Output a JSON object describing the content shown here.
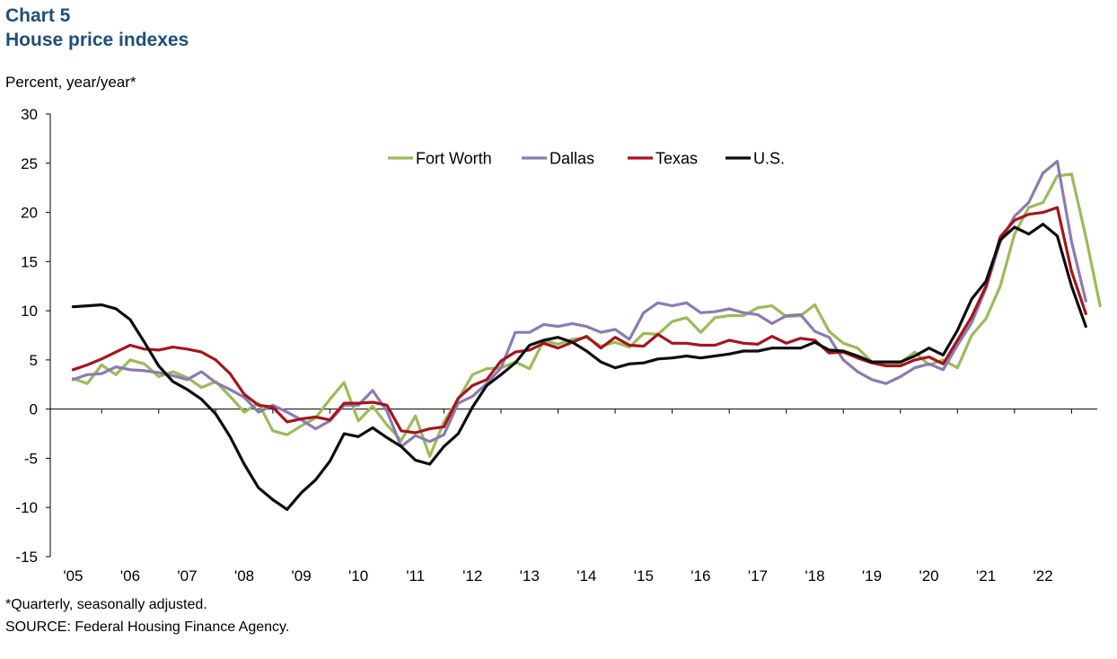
{
  "header": {
    "chart_number": "Chart 5",
    "title": "House price indexes"
  },
  "footnote": "*Quarterly, seasonally adjusted.",
  "source": "SOURCE: Federal Housing Finance Agency.",
  "colors": {
    "fort_worth": "#9bbb59",
    "dallas": "#8c7ab4",
    "texas": "#a3161c",
    "us": "#0d0d0d",
    "title": "#1f4e79"
  },
  "chart_data": {
    "type": "line",
    "ylabel": "Percent, year/year*",
    "xlabel": "",
    "ylim": [
      -15,
      30
    ],
    "yticks": [
      30,
      25,
      20,
      15,
      10,
      5,
      0,
      -5,
      -10,
      -15
    ],
    "x_start": 2005.0,
    "x_step": 0.25,
    "xlim": [
      2004.6,
      2022.95
    ],
    "xtick_labels": [
      "'05",
      "'06",
      "'07",
      "'08",
      "'09",
      "'10",
      "'11",
      "'12",
      "'13",
      "'14",
      "'15",
      "'16",
      "'17",
      "'18",
      "'19",
      "'20",
      "'21",
      "'22"
    ],
    "legend": {
      "placement": "top-center"
    },
    "series": [
      {
        "name": "Fort Worth",
        "color": "#9bbb59",
        "values": [
          3.1,
          2.6,
          4.5,
          3.5,
          5.0,
          4.6,
          3.3,
          3.8,
          3.2,
          2.2,
          2.8,
          1.3,
          -0.3,
          0.6,
          -2.2,
          -2.6,
          -1.7,
          -0.9,
          1.0,
          2.7,
          -1.2,
          0.3,
          -1.6,
          -3.2,
          -0.7,
          -4.8,
          -1.3,
          1.0,
          3.5,
          4.1,
          4.2,
          4.8,
          4.1,
          7.0,
          6.6,
          7.1,
          7.3,
          6.4,
          6.8,
          6.3,
          7.7,
          7.6,
          8.9,
          9.3,
          7.8,
          9.3,
          9.5,
          9.5,
          10.3,
          10.5,
          9.4,
          9.5,
          10.6,
          7.9,
          6.7,
          6.2,
          4.8,
          4.6,
          4.7,
          5.8,
          4.5,
          5.0,
          4.2,
          7.5,
          9.2,
          12.5,
          17.8,
          20.5,
          21.0,
          23.7,
          23.9,
          17.5,
          10.5
        ]
      },
      {
        "name": "Dallas",
        "color": "#8c7ab4",
        "values": [
          3.0,
          3.5,
          3.6,
          4.3,
          4.0,
          3.9,
          3.7,
          3.4,
          3.0,
          3.8,
          2.7,
          2.0,
          1.2,
          -0.3,
          0.4,
          -0.3,
          -1.1,
          -2.0,
          -1.2,
          0.4,
          0.4,
          1.9,
          -0.2,
          -3.8,
          -2.7,
          -3.3,
          -2.6,
          0.6,
          1.3,
          2.6,
          4.2,
          7.8,
          7.8,
          8.6,
          8.4,
          8.7,
          8.4,
          7.8,
          8.1,
          7.1,
          9.8,
          10.8,
          10.5,
          10.8,
          9.8,
          9.9,
          10.2,
          9.8,
          9.6,
          8.7,
          9.5,
          9.6,
          7.9,
          7.3,
          5.0,
          3.8,
          3.0,
          2.6,
          3.3,
          4.2,
          4.6,
          4.0,
          6.5,
          8.8,
          12.3,
          17.0,
          19.6,
          21.0,
          24.0,
          25.2,
          17.0,
          11.0
        ]
      },
      {
        "name": "Texas",
        "color": "#a3161c",
        "values": [
          4.0,
          4.5,
          5.1,
          5.8,
          6.5,
          6.1,
          6.0,
          6.3,
          6.1,
          5.8,
          5.0,
          3.6,
          1.5,
          0.4,
          0.2,
          -1.3,
          -1.0,
          -0.8,
          -1.1,
          0.6,
          0.6,
          0.7,
          0.4,
          -2.2,
          -2.4,
          -2.0,
          -1.8,
          1.1,
          2.4,
          3.0,
          4.9,
          5.8,
          6.0,
          6.7,
          6.2,
          6.8,
          7.4,
          6.2,
          7.3,
          6.5,
          6.4,
          7.6,
          6.7,
          6.7,
          6.5,
          6.5,
          7.0,
          6.7,
          6.6,
          7.4,
          6.7,
          7.2,
          7.0,
          5.7,
          5.8,
          5.2,
          4.7,
          4.4,
          4.4,
          5.0,
          5.3,
          4.6,
          7.0,
          9.4,
          12.5,
          17.5,
          19.2,
          19.8,
          20.0,
          20.5,
          14.0,
          9.7
        ]
      },
      {
        "name": "U.S.",
        "color": "#0d0d0d",
        "values": [
          10.4,
          10.5,
          10.6,
          10.2,
          9.1,
          6.8,
          4.4,
          2.8,
          2.0,
          1.0,
          -0.5,
          -2.8,
          -5.6,
          -8.0,
          -9.2,
          -10.2,
          -8.5,
          -7.2,
          -5.3,
          -2.5,
          -2.8,
          -1.9,
          -2.9,
          -3.8,
          -5.2,
          -5.6,
          -3.8,
          -2.5,
          0.2,
          2.4,
          3.5,
          4.7,
          6.5,
          7.0,
          7.3,
          6.8,
          5.9,
          4.8,
          4.2,
          4.6,
          4.7,
          5.1,
          5.2,
          5.4,
          5.2,
          5.4,
          5.6,
          5.9,
          5.9,
          6.2,
          6.2,
          6.2,
          6.8,
          6.0,
          5.9,
          5.4,
          4.8,
          4.8,
          4.8,
          5.4,
          6.2,
          5.5,
          8.0,
          11.2,
          13.0,
          17.2,
          18.5,
          17.8,
          18.8,
          17.6,
          12.5,
          8.4
        ]
      }
    ]
  }
}
